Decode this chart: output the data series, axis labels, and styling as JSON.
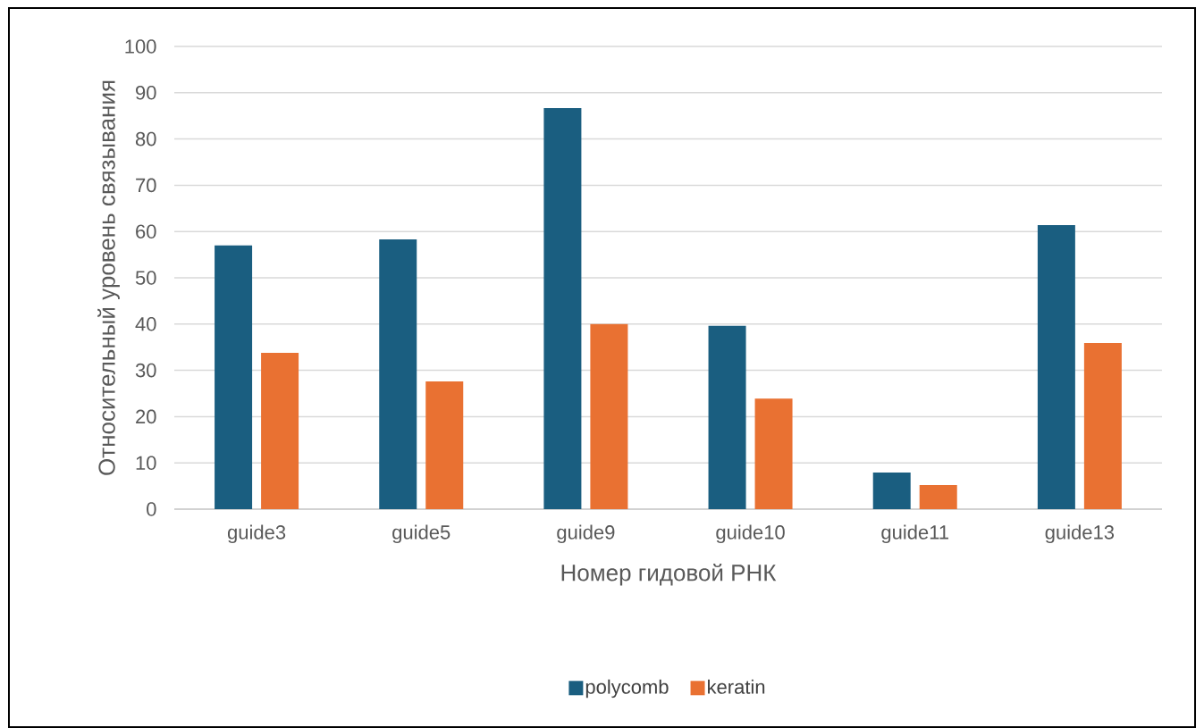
{
  "chart_data": {
    "type": "bar",
    "xlabel": "Номер гидовой РНК",
    "ylabel": "Относительный уровень связывания",
    "categories": [
      "guide3",
      "guide5",
      "guide9",
      "guide10",
      "guide11",
      "guide13"
    ],
    "series": [
      {
        "name": "polycomb",
        "color": "#1a5e80",
        "values": [
          57,
          58.3,
          86.7,
          39.6,
          7.9,
          61.4
        ]
      },
      {
        "name": "keratin",
        "color": "#e97132",
        "values": [
          33.8,
          27.6,
          40,
          23.9,
          5.2,
          35.9
        ]
      }
    ],
    "ylim": [
      0,
      100
    ],
    "yticks": [
      0,
      10,
      20,
      30,
      40,
      50,
      60,
      70,
      80,
      90,
      100
    ],
    "grid": "y",
    "legend": "bottom"
  }
}
